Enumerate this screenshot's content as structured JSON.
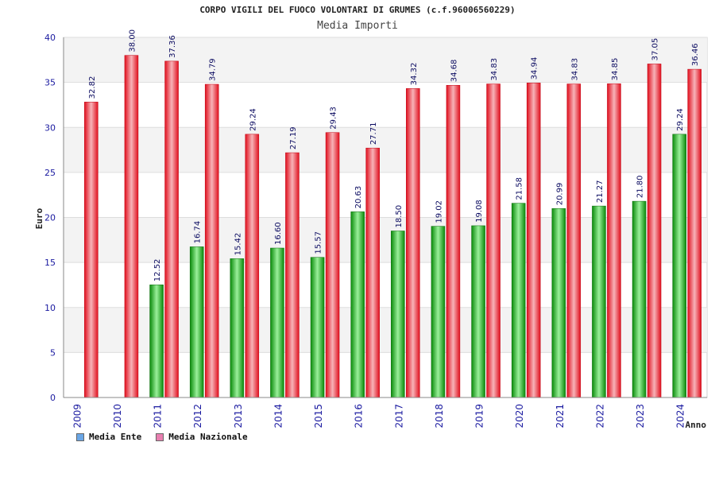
{
  "chart_data": {
    "type": "bar",
    "title": "CORPO VIGILI DEL FUOCO VOLONTARI DI GRUMES (c.f.96006560229)",
    "subtitle": "Media Importi",
    "ylabel": "Euro",
    "xlabel": "Anno",
    "ylim": [
      0,
      40
    ],
    "yticks": [
      0,
      5,
      10,
      15,
      20,
      25,
      30,
      35,
      40
    ],
    "categories": [
      "2009",
      "2010",
      "2011",
      "2012",
      "2013",
      "2014",
      "2015",
      "2016",
      "2017",
      "2018",
      "2019",
      "2020",
      "2021",
      "2022",
      "2023",
      "2024"
    ],
    "series": [
      {
        "name": "Media Ente",
        "legend_color": "#6aa6e6",
        "bar_color": "#22b022",
        "values": [
          null,
          null,
          12.52,
          16.74,
          15.42,
          16.6,
          15.57,
          20.63,
          18.5,
          19.02,
          19.08,
          21.58,
          20.99,
          21.27,
          21.8,
          29.24
        ],
        "labels": [
          "",
          "",
          "12.52",
          "16.74",
          "15.42",
          "16.60",
          "15.57",
          "20.63",
          "18.50",
          "19.02",
          "19.08",
          "21.58",
          "20.99",
          "21.27",
          "21.80",
          "29.24"
        ]
      },
      {
        "name": "Media Nazionale",
        "legend_color": "#e87fb0",
        "bar_color": "#ee2a3a",
        "values": [
          32.82,
          38.0,
          37.36,
          34.79,
          29.24,
          27.19,
          29.43,
          27.71,
          34.32,
          34.68,
          34.83,
          34.94,
          34.83,
          34.85,
          37.05,
          36.46
        ],
        "labels": [
          "32.82",
          "38.00",
          "37.36",
          "34.79",
          "29.24",
          "27.19",
          "29.43",
          "27.71",
          "34.32",
          "34.68",
          "34.83",
          "34.94",
          "34.83",
          "34.85",
          "37.05",
          "36.46"
        ]
      }
    ],
    "grid": true,
    "legend_position": "bottom-left"
  }
}
